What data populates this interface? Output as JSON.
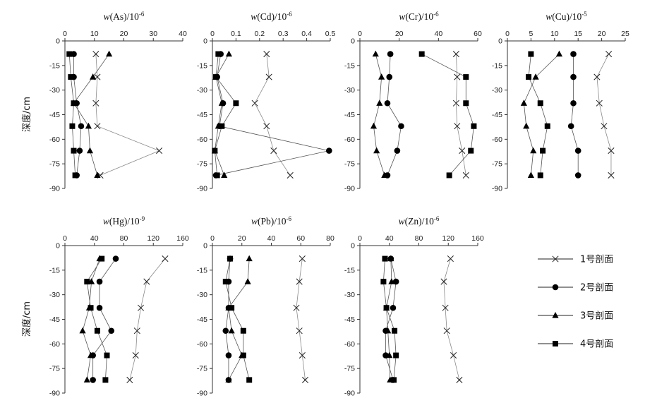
{
  "chart_data": [
    {
      "type": "scatter",
      "title": "w(As)/10-6",
      "title_var": "w",
      "title_elem": "(As)/10",
      "title_exp": "-6",
      "xlim": [
        0,
        40
      ],
      "xticks": [
        0,
        10,
        20,
        30,
        40
      ],
      "ylim": [
        -90,
        0
      ],
      "yticks": [
        0,
        -15,
        -30,
        -45,
        -60,
        -75,
        -90
      ],
      "ylabel": "深度/cm",
      "series": [
        {
          "name": "1号剖面",
          "marker": "x",
          "x": [
            10.5,
            11.0,
            10.5,
            11.0,
            32.0,
            12.0
          ],
          "y": [
            -8,
            -22,
            -38,
            -52,
            -67,
            -82
          ]
        },
        {
          "name": "2号剖面",
          "marker": "circle",
          "x": [
            3.0,
            3.0,
            4.0,
            5.5,
            5.0,
            4.0
          ],
          "y": [
            -8,
            -22,
            -38,
            -52,
            -67,
            -82
          ]
        },
        {
          "name": "3号剖面",
          "marker": "triangle",
          "x": [
            15.0,
            9.5,
            3.0,
            8.0,
            8.5,
            11.0
          ],
          "y": [
            -8,
            -22,
            -38,
            -52,
            -67,
            -82
          ]
        },
        {
          "name": "4号剖面",
          "marker": "square",
          "x": [
            1.5,
            2.0,
            3.0,
            2.5,
            3.0,
            3.5
          ],
          "y": [
            -8,
            -22,
            -38,
            -52,
            -67,
            -82
          ]
        }
      ]
    },
    {
      "type": "scatter",
      "title": "w(Cd)/10-6",
      "title_var": "w",
      "title_elem": "(Cd)/10",
      "title_exp": "-6",
      "xlim": [
        0,
        0.5
      ],
      "xticks": [
        0,
        0.1,
        0.2,
        0.3,
        0.4,
        0.5
      ],
      "ylim": [
        -90,
        0
      ],
      "yticks": [
        0,
        -15,
        -30,
        -45,
        -60,
        -75,
        -90
      ],
      "series": [
        {
          "name": "1号剖面",
          "marker": "x",
          "x": [
            0.23,
            0.24,
            0.18,
            0.23,
            0.26,
            0.33
          ],
          "y": [
            -8,
            -22,
            -38,
            -52,
            -67,
            -82
          ]
        },
        {
          "name": "2号剖面",
          "marker": "circle",
          "x": [
            0.035,
            0.02,
            0.045,
            0.03,
            0.495,
            0.015
          ],
          "y": [
            -8,
            -22,
            -38,
            -52,
            -67,
            -82
          ]
        },
        {
          "name": "3号剖面",
          "marker": "triangle",
          "x": [
            0.07,
            0.015,
            0.04,
            0.025,
            0.01,
            0.05
          ],
          "y": [
            -8,
            -22,
            -38,
            -52,
            -67,
            -82
          ]
        },
        {
          "name": "4号剖面",
          "marker": "square",
          "x": [
            0.025,
            0.015,
            0.1,
            0.04,
            0.01,
            0.02
          ],
          "y": [
            -8,
            -22,
            -38,
            -52,
            -67,
            -82
          ]
        }
      ]
    },
    {
      "type": "scatter",
      "title": "w(Cr)/10-6",
      "title_var": "w",
      "title_elem": "(Cr)/10",
      "title_exp": "-6",
      "xlim": [
        0,
        60
      ],
      "xticks": [
        0,
        20,
        40,
        60
      ],
      "ylim": [
        -90,
        0
      ],
      "yticks": [
        0,
        -15,
        -30,
        -45,
        -60,
        -75,
        -90
      ],
      "series": [
        {
          "name": "1号剖面",
          "marker": "x",
          "x": [
            49.0,
            49.5,
            49.0,
            49.5,
            52.0,
            54.0
          ],
          "y": [
            -8,
            -22,
            -38,
            -52,
            -67,
            -82
          ]
        },
        {
          "name": "2号剖面",
          "marker": "circle",
          "x": [
            15.5,
            15.0,
            14.0,
            21.0,
            19.0,
            14.0
          ],
          "y": [
            -8,
            -22,
            -38,
            -52,
            -67,
            -82
          ]
        },
        {
          "name": "3号剖面",
          "marker": "triangle",
          "x": [
            8.0,
            11.0,
            10.0,
            7.0,
            8.5,
            12.5
          ],
          "y": [
            -8,
            -22,
            -38,
            -52,
            -67,
            -82
          ]
        },
        {
          "name": "4号剖面",
          "marker": "square",
          "x": [
            31.5,
            54.0,
            54.0,
            58.0,
            56.5,
            45.5
          ],
          "y": [
            -8,
            -22,
            -38,
            -52,
            -67,
            -82
          ]
        }
      ]
    },
    {
      "type": "scatter",
      "title": "w(Cu)/10-5",
      "title_var": "w",
      "title_elem": "(Cu)/10",
      "title_exp": "-5",
      "xlim": [
        0,
        25
      ],
      "xticks": [
        0,
        5,
        10,
        15,
        20,
        25
      ],
      "ylim": [
        -90,
        0
      ],
      "yticks": [
        0,
        -15,
        -30,
        -45,
        -60,
        -75,
        -90
      ],
      "series": [
        {
          "name": "1号剖面",
          "marker": "x",
          "x": [
            21.5,
            19.0,
            19.5,
            20.5,
            22.0,
            22.0
          ],
          "y": [
            -8,
            -22,
            -38,
            -52,
            -67,
            -82
          ]
        },
        {
          "name": "2号剖面",
          "marker": "circle",
          "x": [
            14.0,
            14.0,
            14.0,
            13.5,
            15.0,
            15.0
          ],
          "y": [
            -8,
            -22,
            -38,
            -52,
            -67,
            -82
          ]
        },
        {
          "name": "3号剖面",
          "marker": "triangle",
          "x": [
            11.0,
            6.0,
            3.5,
            4.0,
            5.5,
            5.0
          ],
          "y": [
            -8,
            -22,
            -38,
            -52,
            -67,
            -82
          ]
        },
        {
          "name": "4号剖面",
          "marker": "square",
          "x": [
            5.0,
            4.5,
            7.0,
            8.5,
            7.5,
            7.0
          ],
          "y": [
            -8,
            -22,
            -38,
            -52,
            -67,
            -82
          ]
        }
      ]
    },
    {
      "type": "scatter",
      "title": "w(Hg)/10-9",
      "title_var": "w",
      "title_elem": "(Hg)/10",
      "title_exp": "-9",
      "xlim": [
        0,
        160
      ],
      "xticks": [
        0,
        40,
        80,
        120,
        160
      ],
      "ylim": [
        -90,
        0
      ],
      "yticks": [
        0,
        -15,
        -30,
        -45,
        -60,
        -75,
        -90
      ],
      "ylabel": "深度/cm",
      "series": [
        {
          "name": "1号剖面",
          "marker": "x",
          "x": [
            136,
            111,
            103,
            98,
            96,
            88
          ],
          "y": [
            -8,
            -22,
            -38,
            -52,
            -67,
            -82
          ]
        },
        {
          "name": "2号剖面",
          "marker": "circle",
          "x": [
            69,
            47,
            47,
            63,
            38,
            38
          ],
          "y": [
            -8,
            -22,
            -38,
            -52,
            -67,
            -82
          ]
        },
        {
          "name": "3号剖面",
          "marker": "triangle",
          "x": [
            47,
            36,
            33,
            24,
            35,
            30
          ],
          "y": [
            -8,
            -22,
            -38,
            -52,
            -67,
            -82
          ]
        },
        {
          "name": "4号剖面",
          "marker": "square",
          "x": [
            50,
            30,
            35,
            44,
            57,
            55
          ],
          "y": [
            -8,
            -22,
            -38,
            -52,
            -67,
            -82
          ]
        }
      ]
    },
    {
      "type": "scatter",
      "title": "w(Pb)/10-6",
      "title_var": "w",
      "title_elem": "(Pb)/10",
      "title_exp": "-6",
      "xlim": [
        0,
        80
      ],
      "xticks": [
        0,
        20,
        40,
        60,
        80
      ],
      "ylim": [
        -90,
        0
      ],
      "yticks": [
        0,
        -15,
        -30,
        -45,
        -60,
        -75,
        -90
      ],
      "series": [
        {
          "name": "1号剖面",
          "marker": "x",
          "x": [
            61,
            59,
            57,
            59,
            61,
            63
          ],
          "y": [
            -8,
            -22,
            -38,
            -52,
            -67,
            -82
          ]
        },
        {
          "name": "2号剖面",
          "marker": "circle",
          "x": [
            12,
            11,
            11,
            9,
            11,
            11
          ],
          "y": [
            -8,
            -22,
            -38,
            -52,
            -67,
            -82
          ]
        },
        {
          "name": "3号剖面",
          "marker": "triangle",
          "x": [
            25,
            24,
            11,
            13,
            20,
            11
          ],
          "y": [
            -8,
            -22,
            -38,
            -52,
            -67,
            -82
          ]
        },
        {
          "name": "4号剖面",
          "marker": "square",
          "x": [
            12,
            9,
            13,
            21,
            21,
            25
          ],
          "y": [
            -8,
            -22,
            -38,
            -52,
            -67,
            -82
          ]
        }
      ]
    },
    {
      "type": "scatter",
      "title": "w(Zn)/10-6",
      "title_var": "w",
      "title_elem": "(Zn)/10",
      "title_exp": "-6",
      "xlim": [
        0,
        160
      ],
      "xticks": [
        0,
        40,
        80,
        120,
        160
      ],
      "ylim": [
        -90,
        0
      ],
      "yticks": [
        0,
        -15,
        -30,
        -45,
        -60,
        -75,
        -90
      ],
      "series": [
        {
          "name": "1号剖面",
          "marker": "x",
          "x": [
            123,
            114,
            116,
            118,
            127,
            135
          ],
          "y": [
            -8,
            -22,
            -38,
            -52,
            -67,
            -82
          ]
        },
        {
          "name": "2号剖面",
          "marker": "circle",
          "x": [
            42,
            49,
            45,
            35,
            35,
            45
          ],
          "y": [
            -8,
            -22,
            -38,
            -52,
            -67,
            -82
          ]
        },
        {
          "name": "3号剖面",
          "marker": "triangle",
          "x": [
            42,
            43,
            36,
            38,
            40,
            41
          ],
          "y": [
            -8,
            -22,
            -38,
            -52,
            -67,
            -82
          ]
        },
        {
          "name": "4号剖面",
          "marker": "square",
          "x": [
            34,
            32,
            36,
            47,
            49,
            46
          ],
          "y": [
            -8,
            -22,
            -38,
            -52,
            -67,
            -82
          ]
        }
      ]
    }
  ],
  "legend": {
    "placement": "right",
    "items": [
      {
        "label": "1号剖面",
        "marker": "x"
      },
      {
        "label": "2号剖面",
        "marker": "circle"
      },
      {
        "label": "3号剖面",
        "marker": "triangle"
      },
      {
        "label": "4号剖面",
        "marker": "square"
      }
    ]
  }
}
